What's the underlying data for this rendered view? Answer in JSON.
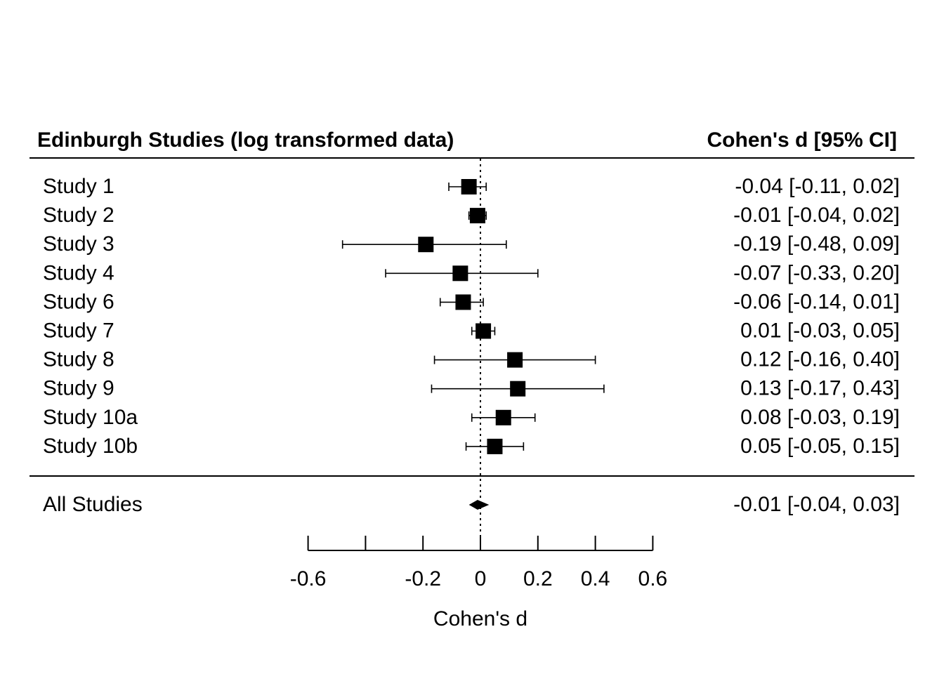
{
  "chart_data": {
    "type": "forest",
    "title_left": "Edinburgh Studies (log transformed data)",
    "title_right": "Cohen's d [95% CI]",
    "xlabel": "Cohen's d",
    "xlim": [
      -0.6,
      0.6
    ],
    "ticks": [
      -0.6,
      -0.4,
      -0.2,
      0,
      0.2,
      0.4,
      0.6
    ],
    "tick_labels": [
      "-0.6",
      "",
      "-0.2",
      "0",
      "0.2",
      "0.4",
      "0.6"
    ],
    "reference_line": 0,
    "studies": [
      {
        "name": "Study 1",
        "estimate": -0.04,
        "lower": -0.11,
        "upper": 0.02,
        "label": "-0.04 [-0.11, 0.02]"
      },
      {
        "name": "Study 2",
        "estimate": -0.01,
        "lower": -0.04,
        "upper": 0.02,
        "label": "-0.01 [-0.04, 0.02]"
      },
      {
        "name": "Study 3",
        "estimate": -0.19,
        "lower": -0.48,
        "upper": 0.09,
        "label": "-0.19 [-0.48, 0.09]"
      },
      {
        "name": "Study 4",
        "estimate": -0.07,
        "lower": -0.33,
        "upper": 0.2,
        "label": "-0.07 [-0.33, 0.20]"
      },
      {
        "name": "Study 6",
        "estimate": -0.06,
        "lower": -0.14,
        "upper": 0.01,
        "label": "-0.06 [-0.14, 0.01]"
      },
      {
        "name": "Study 7",
        "estimate": 0.01,
        "lower": -0.03,
        "upper": 0.05,
        "label": "0.01 [-0.03, 0.05]"
      },
      {
        "name": "Study 8",
        "estimate": 0.12,
        "lower": -0.16,
        "upper": 0.4,
        "label": "0.12 [-0.16, 0.40]"
      },
      {
        "name": "Study 9",
        "estimate": 0.13,
        "lower": -0.17,
        "upper": 0.43,
        "label": "0.13 [-0.17, 0.43]"
      },
      {
        "name": "Study 10a",
        "estimate": 0.08,
        "lower": -0.03,
        "upper": 0.19,
        "label": "0.08 [-0.03, 0.19]"
      },
      {
        "name": "Study 10b",
        "estimate": 0.05,
        "lower": -0.05,
        "upper": 0.15,
        "label": "0.05 [-0.05, 0.15]"
      }
    ],
    "summary": {
      "name": "All Studies",
      "estimate": -0.01,
      "lower": -0.04,
      "upper": 0.03,
      "label": "-0.01 [-0.04, 0.03]"
    }
  }
}
